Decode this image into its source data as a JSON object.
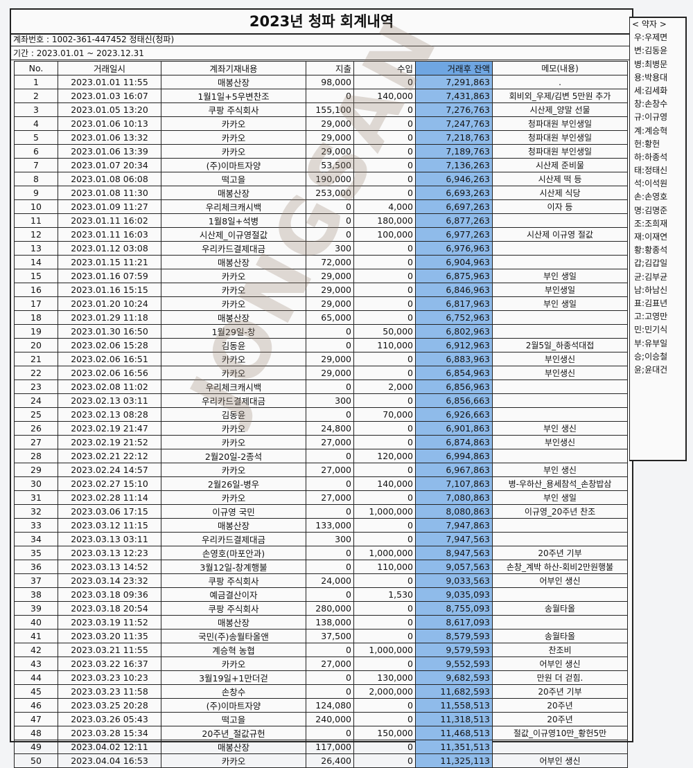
{
  "title": "2023년 청파 회계내역",
  "account": "계좌번호 : 1002-361-447452 정태신(청파)",
  "period": "기간 : 2023.01.01 ~ 2023.12.31",
  "columns": [
    "No.",
    "거래일시",
    "계좌기재내용",
    "지출",
    "수입",
    "거래후 잔액",
    "메모(내용)"
  ],
  "balance_highlight_color": "#8fbbea",
  "rows": [
    [
      "1",
      "2023.01.01 11:55",
      "매봉산장",
      "98,000",
      "0",
      "7,291,863",
      "."
    ],
    [
      "2",
      "2023.01.03 16:07",
      "1월1일+5우변찬조",
      "0",
      "140,000",
      "7,431,863",
      "회비외_우제/김변 5만원 추가"
    ],
    [
      "3",
      "2023.01.05 13:20",
      "쿠팡 주식회사",
      "155,100",
      "0",
      "7,276,763",
      "시산제_양말 선물"
    ],
    [
      "4",
      "2023.01.06 10:13",
      "카카오",
      "29,000",
      "0",
      "7,247,763",
      "청파대원 부인생일"
    ],
    [
      "5",
      "2023.01.06 13:32",
      "카카오",
      "29,000",
      "0",
      "7,218,763",
      "청파대원 부인생일"
    ],
    [
      "6",
      "2023.01.06 13:39",
      "카카오",
      "29,000",
      "0",
      "7,189,763",
      "청파대원 부인생일"
    ],
    [
      "7",
      "2023.01.07 20:34",
      "(주)이마트자양",
      "53,500",
      "0",
      "7,136,263",
      "시산제 준비물"
    ],
    [
      "8",
      "2023.01.08 06:08",
      "떡고을",
      "190,000",
      "0",
      "6,946,263",
      "시산제 떡 등"
    ],
    [
      "9",
      "2023.01.08 11:30",
      "매봉산장",
      "253,000",
      "0",
      "6,693,263",
      "시산제 식당"
    ],
    [
      "10",
      "2023.01.09 11:27",
      "우리체크캐시백",
      "0",
      "4,000",
      "6,697,263",
      "이자 등"
    ],
    [
      "11",
      "2023.01.11 16:02",
      "1월8일+석병",
      "0",
      "180,000",
      "6,877,263",
      ""
    ],
    [
      "12",
      "2023.01.11 16:03",
      "시산제_이규영절값",
      "0",
      "100,000",
      "6,977,263",
      "시산제 이규영 절값"
    ],
    [
      "13",
      "2023.01.12 03:08",
      "우리카드결제대금",
      "300",
      "0",
      "6,976,963",
      ""
    ],
    [
      "14",
      "2023.01.15 11:21",
      "매봉산장",
      "72,000",
      "0",
      "6,904,963",
      ""
    ],
    [
      "15",
      "2023.01.16 07:59",
      "카카오",
      "29,000",
      "0",
      "6,875,963",
      "부인 생일"
    ],
    [
      "16",
      "2023.01.16 15:15",
      "카카오",
      "29,000",
      "0",
      "6,846,963",
      "부인생일"
    ],
    [
      "17",
      "2023.01.20 10:24",
      "카카오",
      "29,000",
      "0",
      "6,817,963",
      "부인 생일"
    ],
    [
      "18",
      "2023.01.29 11:18",
      "매봉산장",
      "65,000",
      "0",
      "6,752,963",
      ""
    ],
    [
      "19",
      "2023.01.30 16:50",
      "1월29일-창",
      "0",
      "50,000",
      "6,802,963",
      ""
    ],
    [
      "20",
      "2023.02.06 15:28",
      "김동윤",
      "0",
      "110,000",
      "6,912,963",
      "2월5일_하종석대접"
    ],
    [
      "21",
      "2023.02.06 16:51",
      "카카오",
      "29,000",
      "0",
      "6,883,963",
      "부인생신"
    ],
    [
      "22",
      "2023.02.06 16:56",
      "카카오",
      "29,000",
      "0",
      "6,854,963",
      "부인생신"
    ],
    [
      "23",
      "2023.02.08 11:02",
      "우리체크캐시백",
      "0",
      "2,000",
      "6,856,963",
      ""
    ],
    [
      "24",
      "2023.02.13 03:11",
      "우리카드결제대금",
      "300",
      "0",
      "6,856,663",
      ""
    ],
    [
      "25",
      "2023.02.13 08:28",
      "김동윤",
      "0",
      "70,000",
      "6,926,663",
      ""
    ],
    [
      "26",
      "2023.02.19 21:47",
      "카카오",
      "24,800",
      "0",
      "6,901,863",
      "부인 생신"
    ],
    [
      "27",
      "2023.02.19 21:52",
      "카카오",
      "27,000",
      "0",
      "6,874,863",
      "부인생신"
    ],
    [
      "28",
      "2023.02.21 22:12",
      "2월20일-2종석",
      "0",
      "120,000",
      "6,994,863",
      ""
    ],
    [
      "29",
      "2023.02.24 14:57",
      "카카오",
      "27,000",
      "0",
      "6,967,863",
      "부인 생신"
    ],
    [
      "30",
      "2023.02.27 15:10",
      "2월26일-병우",
      "0",
      "140,000",
      "7,107,863",
      "병-우하산_용세참석_손창밥삼"
    ],
    [
      "31",
      "2023.02.28 11:14",
      "카카오",
      "27,000",
      "0",
      "7,080,863",
      "부인 생일"
    ],
    [
      "32",
      "2023.03.06 17:15",
      "이규영    국민",
      "0",
      "1,000,000",
      "8,080,863",
      "이규영_20주년 찬조"
    ],
    [
      "33",
      "2023.03.12 11:15",
      "매봉산장",
      "133,000",
      "0",
      "7,947,863",
      ""
    ],
    [
      "34",
      "2023.03.13 03:11",
      "우리카드결제대금",
      "300",
      "0",
      "7,947,563",
      ""
    ],
    [
      "35",
      "2023.03.13 12:23",
      "손영호(마포안과)",
      "0",
      "1,000,000",
      "8,947,563",
      "20주년 기부"
    ],
    [
      "36",
      "2023.03.13 14:52",
      "3월12일-창계행불",
      "0",
      "110,000",
      "9,057,563",
      "손창_계박 하산-회비2만원행불"
    ],
    [
      "37",
      "2023.03.14 23:32",
      "쿠팡 주식회사",
      "24,000",
      "0",
      "9,033,563",
      "어부인 생신"
    ],
    [
      "38",
      "2023.03.18 09:36",
      "예금결산이자",
      "0",
      "1,530",
      "9,035,093",
      ""
    ],
    [
      "39",
      "2023.03.18 20:54",
      "쿠팡 주식회사",
      "280,000",
      "0",
      "8,755,093",
      "송월타올"
    ],
    [
      "40",
      "2023.03.19 11:52",
      "매봉산장",
      "138,000",
      "0",
      "8,617,093",
      ""
    ],
    [
      "41",
      "2023.03.20 11:35",
      "국민(주)송월타올앤",
      "37,500",
      "0",
      "8,579,593",
      "송월타올"
    ],
    [
      "42",
      "2023.03.21 11:55",
      "계승혁    농협",
      "0",
      "1,000,000",
      "9,579,593",
      "찬조비"
    ],
    [
      "43",
      "2023.03.22 16:37",
      "카카오",
      "27,000",
      "0",
      "9,552,593",
      "어부인 생신"
    ],
    [
      "44",
      "2023.03.23 10:23",
      "3월19일+1만더걷",
      "0",
      "130,000",
      "9,682,593",
      "만원 더 걷힘."
    ],
    [
      "45",
      "2023.03.23 11:58",
      "손창수",
      "0",
      "2,000,000",
      "11,682,593",
      "20주년 기부"
    ],
    [
      "46",
      "2023.03.25 20:28",
      "(주)이마트자양",
      "124,080",
      "0",
      "11,558,513",
      "20주년"
    ],
    [
      "47",
      "2023.03.26 05:43",
      "떡고을",
      "240,000",
      "0",
      "11,318,513",
      "20주년"
    ],
    [
      "48",
      "2023.03.28 15:34",
      "20주년_절값규헌",
      "0",
      "150,000",
      "11,468,513",
      "절값_이규영10만_황헌5만"
    ],
    [
      "49",
      "2023.04.02 12:11",
      "매봉산장",
      "117,000",
      "0",
      "11,351,513",
      ""
    ],
    [
      "50",
      "2023.04.04 16:53",
      "카카오",
      "26,400",
      "0",
      "11,325,113",
      "어부인 생신"
    ]
  ],
  "legend": {
    "title": "< 약자 >",
    "items": [
      "우:우제면",
      "변:김동윤",
      "병:최병문",
      "용:박용대",
      "세:김세화",
      "창:손창수",
      "규:이규영",
      "계:계승혁",
      "헌:황헌",
      "하:하종석",
      "태:정태신",
      "석:이석원",
      "손:손영호",
      "명:김명준",
      "조:조희재",
      "재:이재연",
      "황:황종석",
      "갑;김갑일",
      "균:김부균",
      "남:하남신",
      "표:김표년",
      "고:고영만",
      "민:민기식",
      "부:유부일",
      "승;이승철",
      "윤;윤대건"
    ]
  },
  "watermark": "JONGSAN"
}
